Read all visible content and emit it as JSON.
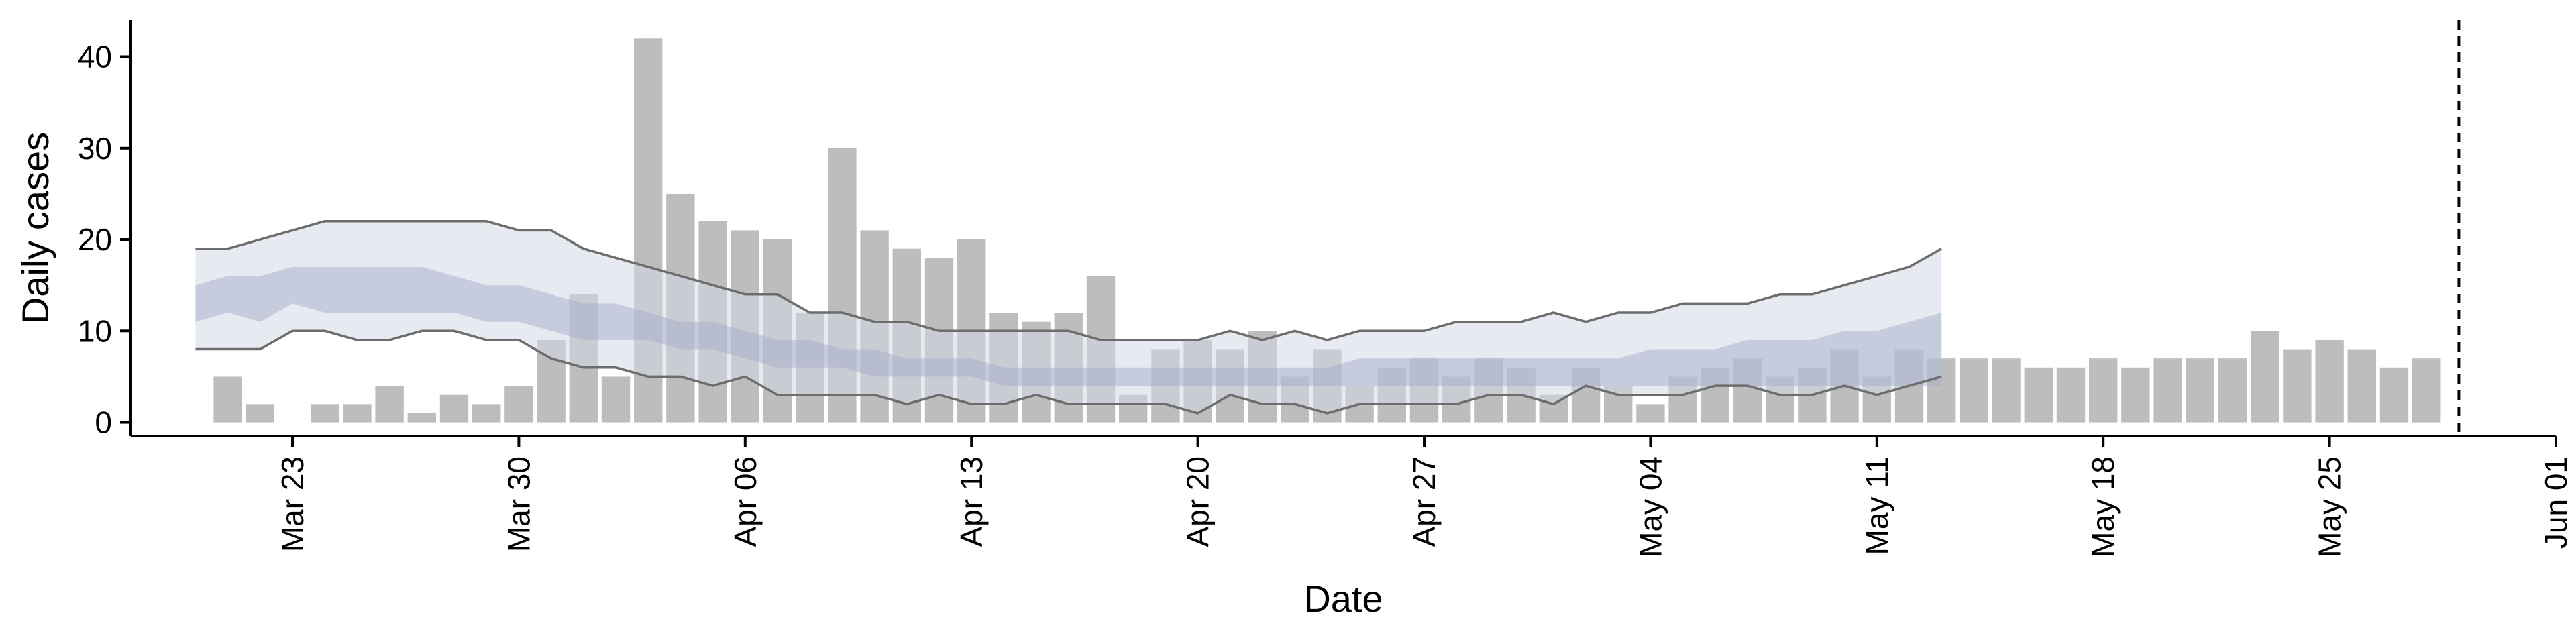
{
  "chart_data": {
    "type": "bar",
    "title": "",
    "xlabel": "Date",
    "ylabel": "Daily cases",
    "ylim": [
      -1.5,
      44
    ],
    "xlim": [
      "2020-03-18",
      "2020-06-01"
    ],
    "grid": false,
    "legend": "none",
    "x_ticks": [
      "2020-03-23",
      "2020-03-30",
      "2020-04-06",
      "2020-04-13",
      "2020-04-20",
      "2020-04-27",
      "2020-05-04",
      "2020-05-11",
      "2020-05-18",
      "2020-05-25",
      "2020-06-01"
    ],
    "x_tick_labels": [
      "Mar 23",
      "Mar 30",
      "Apr 06",
      "Apr 13",
      "Apr 20",
      "Apr 27",
      "May 04",
      "May 11",
      "May 18",
      "May 25",
      "Jun 01"
    ],
    "y_ticks": [
      0,
      10,
      20,
      30,
      40
    ],
    "bars": {
      "start_date": "2020-03-21",
      "values": [
        5,
        2,
        0,
        2,
        2,
        4,
        1,
        3,
        2,
        4,
        9,
        14,
        5,
        42,
        25,
        22,
        21,
        20,
        12,
        30,
        21,
        19,
        18,
        20,
        12,
        11,
        12,
        16,
        3,
        8,
        9,
        8,
        10,
        5,
        8,
        4,
        6,
        7,
        5,
        7,
        6,
        3,
        6,
        4,
        2,
        5,
        6,
        7,
        5,
        6,
        8,
        5,
        8,
        7,
        7,
        7,
        6,
        6,
        7,
        6,
        7,
        7,
        7,
        10,
        8,
        9,
        8,
        6,
        7
      ],
      "color": "#bdbdbd"
    },
    "band_estimate": {
      "start_date": "2020-03-20",
      "upper90": [
        19,
        19,
        20,
        21,
        22,
        22,
        22,
        22,
        22,
        22,
        21,
        21,
        19,
        18,
        17,
        16,
        15,
        14,
        14,
        12,
        12,
        11,
        11,
        10,
        10,
        10,
        10,
        10,
        9,
        9,
        9,
        9,
        10,
        9,
        10,
        9,
        10,
        10,
        10,
        11,
        11,
        11,
        12,
        11,
        12,
        12,
        13,
        13,
        13,
        14,
        14,
        15,
        16,
        17,
        19
      ],
      "upper50": [
        15,
        16,
        16,
        17,
        17,
        17,
        17,
        17,
        16,
        15,
        15,
        14,
        13,
        13,
        12,
        11,
        11,
        10,
        9,
        9,
        8,
        8,
        7,
        7,
        7,
        6,
        6,
        6,
        6,
        6,
        6,
        6,
        6,
        6,
        6,
        6,
        7,
        7,
        7,
        7,
        7,
        7,
        7,
        7,
        7,
        8,
        8,
        8,
        9,
        9,
        9,
        10,
        10,
        11,
        12
      ],
      "lower50": [
        11,
        12,
        11,
        13,
        12,
        12,
        12,
        12,
        12,
        11,
        11,
        10,
        9,
        9,
        9,
        8,
        8,
        7,
        6,
        6,
        6,
        5,
        5,
        5,
        5,
        4,
        4,
        4,
        4,
        4,
        4,
        4,
        4,
        4,
        4,
        4,
        4,
        4,
        4,
        4,
        4,
        4,
        4,
        4,
        4,
        4,
        4,
        4,
        4,
        4,
        4,
        4,
        4,
        4,
        4
      ],
      "lower90": [
        8,
        8,
        8,
        10,
        10,
        9,
        9,
        10,
        10,
        9,
        9,
        7,
        6,
        6,
        5,
        5,
        4,
        5,
        3,
        3,
        3,
        3,
        2,
        3,
        2,
        2,
        3,
        2,
        2,
        2,
        2,
        1,
        3,
        2,
        2,
        1,
        2,
        2,
        2,
        2,
        3,
        3,
        2,
        4,
        3,
        3,
        3,
        4,
        4,
        3,
        3,
        4,
        3,
        4,
        5
      ],
      "outer_color": "#d5d9e6",
      "inner_color": "#a3adcb",
      "line_color": "#6d6d6d"
    },
    "vline": {
      "date": "2020-05-29",
      "style": "dashed",
      "color": "#000000"
    }
  }
}
